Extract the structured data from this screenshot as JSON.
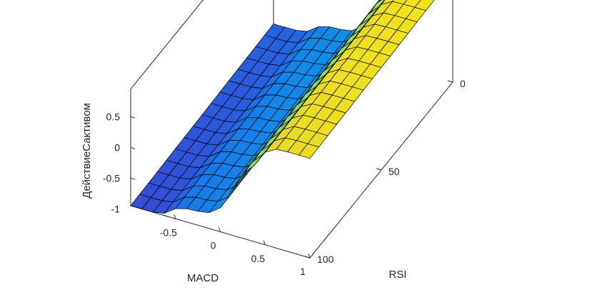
{
  "chart_data": {
    "type": "surface",
    "title": "",
    "xlabel": "MACD",
    "ylabel": "RSI",
    "zlabel": "ДействиеСактивом",
    "xlim": [
      -1,
      1
    ],
    "ylim": [
      0,
      100
    ],
    "zlim": [
      -0.95,
      0.95
    ],
    "xticks": [
      -0.5,
      0,
      0.5,
      1
    ],
    "xtick_labels": [
      "-0.5",
      "0",
      "0.5",
      "1"
    ],
    "yticks": [
      0,
      50,
      100
    ],
    "ytick_labels": [
      "0",
      "50",
      "100"
    ],
    "zticks": [
      -1,
      -0.5,
      0,
      0.5
    ],
    "ztick_labels": [
      "-1",
      "-0.5",
      "0",
      "0.5"
    ],
    "grid_rows_rsi": 16,
    "grid_cols_macd": 16,
    "colormap": "parula",
    "edge_color": "#000000",
    "surface_summary": "Staircase surface: z ≈ -0.9 for low MACD, rising in steps near MACD≈-0.15 and MACD≈0.3 to ≈0.75 at high MACD; slightly higher toward low RSI; levels ≈ -0.9, -0.65, 0.3, 0.75."
  }
}
